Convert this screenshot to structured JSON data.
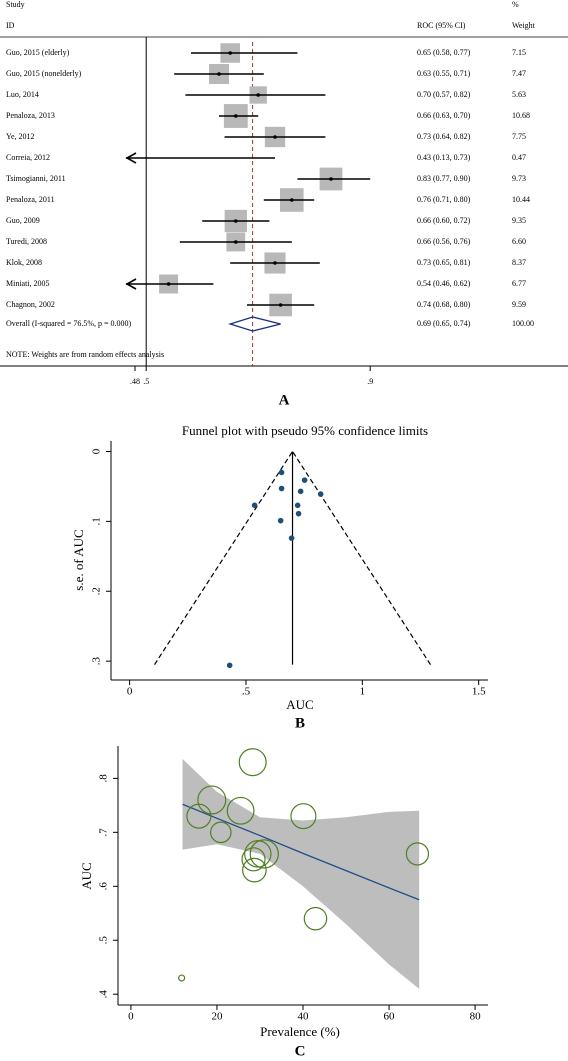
{
  "chart_data": [
    {
      "type": "forest",
      "panel_label": "A",
      "header": {
        "study": "Study",
        "id": "ID",
        "roc": "ROC (95% CI)",
        "pct": "%",
        "weight": "Weight"
      },
      "studies": [
        "Guo, 2015 (elderly)",
        "Guo, 2015 (nonelderly)",
        "Luo, 2014",
        "Penaloza, 2013",
        "Ye, 2012",
        "Correia, 2012",
        "Tsimogianni, 2011",
        "Penaloza, 2011",
        "Guo, 2009",
        "Turedi, 2008",
        "Klok, 2008",
        "Miniati, 2005",
        "Chagnon, 2002"
      ],
      "values": [
        0.65,
        0.63,
        0.7,
        0.66,
        0.73,
        0.43,
        0.83,
        0.76,
        0.66,
        0.66,
        0.73,
        0.54,
        0.74
      ],
      "lower": [
        0.58,
        0.55,
        0.57,
        0.63,
        0.64,
        0.13,
        0.77,
        0.71,
        0.6,
        0.56,
        0.65,
        0.46,
        0.68
      ],
      "upper": [
        0.77,
        0.71,
        0.82,
        0.7,
        0.82,
        0.73,
        0.9,
        0.8,
        0.72,
        0.76,
        0.81,
        0.62,
        0.8
      ],
      "value_labels": [
        "0.65 (0.58, 0.77)",
        "0.63 (0.55, 0.71)",
        "0.70 (0.57, 0.82)",
        "0.66 (0.63, 0.70)",
        "0.73 (0.64, 0.82)",
        "0.43 (0.13, 0.73)",
        "0.83 (0.77, 0.90)",
        "0.76 (0.71, 0.80)",
        "0.66 (0.60, 0.72)",
        "0.66 (0.56, 0.76)",
        "0.73 (0.65, 0.81)",
        "0.54 (0.46, 0.62)",
        "0.74 (0.68, 0.80)"
      ],
      "weights": [
        7.15,
        7.47,
        5.63,
        10.68,
        7.75,
        0.47,
        9.73,
        10.44,
        9.35,
        6.6,
        8.37,
        6.77,
        9.59
      ],
      "weight_labels": [
        "7.15",
        "7.47",
        "5.63",
        "10.68",
        "7.75",
        "0.47",
        "9.73",
        "10.44",
        "9.35",
        "6.60",
        "8.37",
        "6.77",
        "9.59"
      ],
      "overall": {
        "label": "Overall  (I-squared = 76.5%, p = 0.000)",
        "value": 0.69,
        "lower": 0.65,
        "upper": 0.74,
        "value_label": "0.69 (0.65, 0.74)",
        "weight": 100,
        "weight_label": "100.00"
      },
      "note": "NOTE: Weights are from random effects analysis",
      "null_line": 0.5,
      "xlim": [
        0.48,
        0.98
      ],
      "xticks": [
        {
          "value": 0.48,
          "label": ".48"
        },
        {
          "value": 0.5,
          "label": ".5"
        },
        {
          "value": 0.9,
          "label": ".9"
        }
      ],
      "colors": {
        "box": "#b8b8b8",
        "overall": "#1a2f80",
        "reference": "#a83232"
      }
    },
    {
      "type": "funnel",
      "panel_label": "B",
      "title": "Funnel plot with pseudo 95% confidence limits",
      "x_label": "AUC",
      "y_label": "s.e. of AUC",
      "x": [
        0.653,
        0.752,
        0.821,
        0.735,
        0.653,
        0.537,
        0.722,
        0.726,
        0.649,
        0.696,
        0.43
      ],
      "y": [
        0.03,
        0.041,
        0.061,
        0.057,
        0.053,
        0.077,
        0.077,
        0.089,
        0.099,
        0.124,
        0.306
      ],
      "color": "#1f4e79",
      "pooled": 0.7,
      "pseudo_limits": {
        "se": 0.305,
        "lower": 0.107,
        "upper": 1.293
      },
      "xlim": [
        -0.08,
        1.54
      ],
      "ylim": [
        -0.015,
        0.327
      ],
      "y_reversed": true,
      "xticks": [
        0,
        {
          "value": 0.5,
          "label": ".5"
        },
        1,
        1.5
      ],
      "yticks": [
        0,
        {
          "value": 0.1,
          "label": ".1"
        },
        {
          "value": 0.2,
          "label": ".2"
        },
        {
          "value": 0.3,
          "label": ".3"
        }
      ]
    },
    {
      "type": "bubble",
      "panel_label": "C",
      "x_label": "Prevalence (%)",
      "y_label": "AUC",
      "x": [
        28.5,
        28.7,
        20.9,
        31,
        15.8,
        11.8,
        28.3,
        18.8,
        29.5,
        66.6,
        40.1,
        42.9,
        25.5
      ],
      "y": [
        0.65,
        0.63,
        0.7,
        0.66,
        0.73,
        0.43,
        0.83,
        0.76,
        0.66,
        0.66,
        0.73,
        0.54,
        0.74
      ],
      "sizes": [
        7.15,
        7.47,
        5.63,
        10.68,
        7.75,
        0.47,
        9.73,
        10.44,
        9.35,
        6.6,
        8.37,
        6.77,
        9.59
      ],
      "color": "#4f7f23",
      "fit": {
        "x": [
          12,
          20,
          30,
          40,
          50,
          60,
          67
        ],
        "y": [
          0.752,
          0.726,
          0.694,
          0.661,
          0.629,
          0.597,
          0.575
        ],
        "lower": [
          0.668,
          0.678,
          0.66,
          0.6,
          0.53,
          0.455,
          0.41
        ],
        "upper": [
          0.836,
          0.775,
          0.728,
          0.722,
          0.728,
          0.738,
          0.74
        ],
        "color": "#1f4e8c",
        "band_color": "#bdbdbd"
      },
      "xlim": [
        -3,
        83
      ],
      "ylim": [
        0.38,
        0.86
      ],
      "xticks": [
        0,
        20,
        40,
        60,
        80
      ],
      "yticks": [
        {
          "value": 0.4,
          "label": ".4"
        },
        {
          "value": 0.5,
          "label": ".5"
        },
        {
          "value": 0.6,
          "label": ".6"
        },
        {
          "value": 0.7,
          "label": ".7"
        },
        {
          "value": 0.8,
          "label": ".8"
        }
      ]
    }
  ]
}
